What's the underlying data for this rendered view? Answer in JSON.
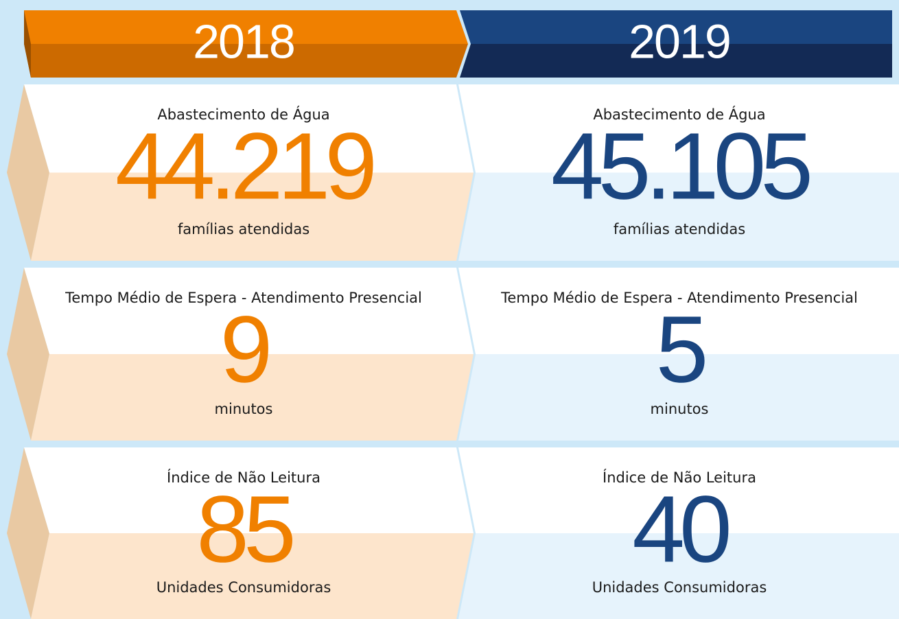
{
  "columns": [
    {
      "year": "2018",
      "items": [
        {
          "label": "Abastecimento de Água",
          "value": "44.219",
          "unit": "famílias atendidas"
        },
        {
          "label": "Tempo Médio de Espera - Atendimento Presencial",
          "value": "9",
          "unit": "minutos"
        },
        {
          "label": "Índice de Não Leitura",
          "value": "85",
          "unit": "Unidades Consumidoras"
        }
      ]
    },
    {
      "year": "2019",
      "items": [
        {
          "label": "Abastecimento de Água",
          "value": "45.105",
          "unit": "famílias atendidas"
        },
        {
          "label": "Tempo Médio de Espera - Atendimento Presencial",
          "value": "5",
          "unit": "minutos"
        },
        {
          "label": "Índice de Não Leitura",
          "value": "40",
          "unit": "Unidades Consumidoras"
        }
      ]
    }
  ]
}
